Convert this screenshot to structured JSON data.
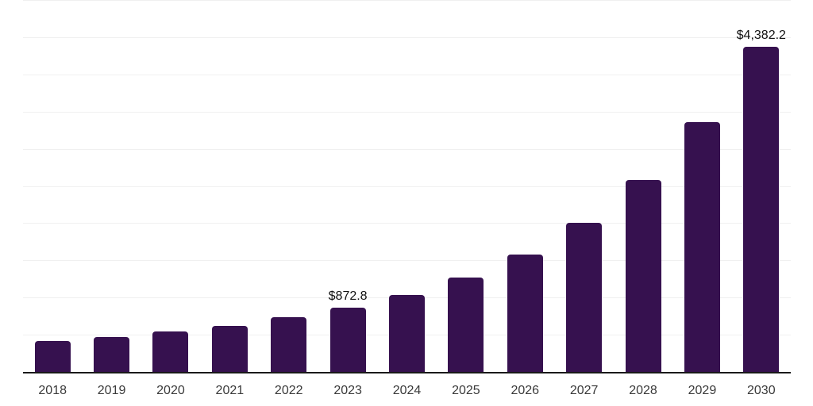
{
  "page": {
    "background": "#ffffff"
  },
  "chart_data": {
    "type": "bar",
    "title": "",
    "xlabel": "",
    "ylabel": "",
    "categories": [
      "2018",
      "2019",
      "2020",
      "2021",
      "2022",
      "2023",
      "2024",
      "2025",
      "2026",
      "2027",
      "2028",
      "2029",
      "2030"
    ],
    "values": [
      422,
      480,
      557,
      625,
      743,
      872.8,
      1040,
      1280,
      1590,
      2013,
      2590,
      3364,
      4382.2
    ],
    "value_labels": [
      {
        "category": "2023",
        "text": "$872.8"
      },
      {
        "category": "2030",
        "text": "$4,382.2"
      }
    ],
    "ylim": [
      0,
      5000
    ],
    "gridline_interval": 500,
    "grid": "horizontal",
    "legend": "none",
    "y_axis_labels_visible": false,
    "colors": {
      "bar": "#36114F",
      "axis_line": "#1a1a1a",
      "gridline": "#f0f0f0",
      "tick_label": "#3a3a3a",
      "value_label": "#121212",
      "background": "#ffffff"
    }
  }
}
